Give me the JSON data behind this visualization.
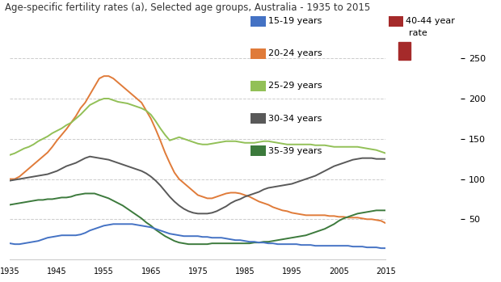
{
  "title": "Age-specific fertility rates (a), Selected age groups, Australia - 1935 to 2015",
  "ylim": [
    0,
    270
  ],
  "yticks": [
    50,
    100,
    150,
    200,
    250
  ],
  "colors": {
    "15_19": "#4472C4",
    "20_24": "#E07B39",
    "25_29": "#92C057",
    "30_34": "#595959",
    "35_39": "#3C7A3C",
    "40_44": "#A52A2A"
  },
  "legend_labels": [
    "15-19 years",
    "20-24 years",
    "25-29 years",
    "30-34 years",
    "35-39 years"
  ],
  "right_legend_label": "40-44 year",
  "right_axis_label": "rate",
  "background_color": "#ffffff",
  "grid_color": "#cccccc",
  "right_bar_color": "#b8d0e8"
}
